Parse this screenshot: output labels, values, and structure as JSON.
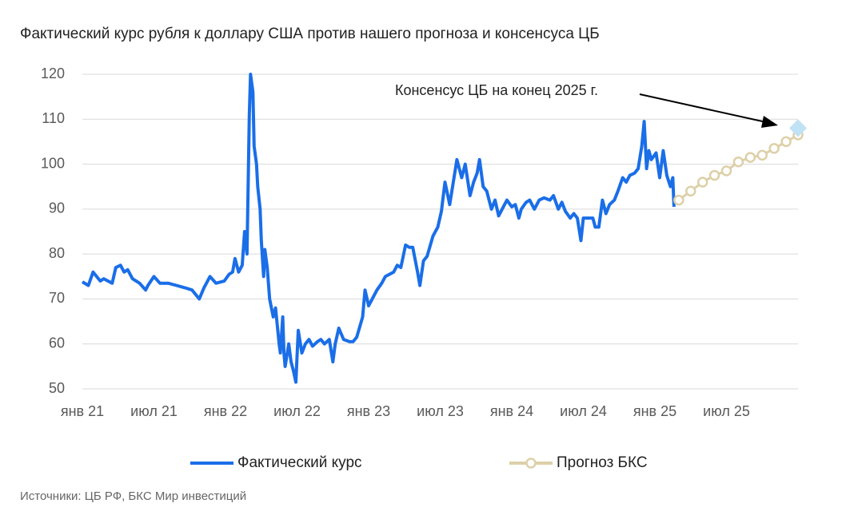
{
  "chart_data": {
    "type": "line",
    "title": "Фактический курс рубля к доллару США против нашего прогноза и консенсуса ЦБ",
    "xlim": [
      0,
      60
    ],
    "xticks": [
      {
        "value": 0,
        "label": "янв 21"
      },
      {
        "value": 6,
        "label": "июл 21"
      },
      {
        "value": 12,
        "label": "янв 22"
      },
      {
        "value": 18,
        "label": "июл 22"
      },
      {
        "value": 24,
        "label": "янв 23"
      },
      {
        "value": 30,
        "label": "июл 23"
      },
      {
        "value": 36,
        "label": "янв 24"
      },
      {
        "value": 42,
        "label": "июл 24"
      },
      {
        "value": 48,
        "label": "янв 25"
      },
      {
        "value": 54,
        "label": "июл 25"
      }
    ],
    "ylim": [
      50,
      120
    ],
    "yticks": [
      50,
      60,
      70,
      80,
      90,
      100,
      110,
      120
    ],
    "grid": true,
    "series": [
      {
        "name": "Фактический курс",
        "color": "#1a6ee8",
        "x": [
          0,
          0.5,
          0.9,
          1.5,
          1.8,
          2.5,
          2.8,
          3.2,
          3.5,
          3.8,
          4.2,
          4.8,
          5.3,
          5.5,
          6.0,
          6.5,
          7.2,
          7.9,
          8.6,
          9.2,
          9.8,
          10.2,
          10.7,
          11.2,
          11.9,
          12.3,
          12.6,
          12.8,
          13.1,
          13.4,
          13.6,
          13.8,
          14.0,
          14.1,
          14.3,
          14.4,
          14.6,
          14.7,
          14.9,
          15.0,
          15.2,
          15.3,
          15.5,
          15.7,
          16.0,
          16.2,
          16.5,
          16.6,
          16.8,
          16.9,
          17.0,
          17.3,
          17.5,
          17.7,
          17.9,
          18.1,
          18.4,
          18.7,
          19.0,
          19.3,
          19.7,
          20.0,
          20.3,
          20.7,
          21.0,
          21.2,
          21.5,
          21.9,
          22.4,
          22.7,
          23.0,
          23.5,
          23.7,
          24.0,
          24.4,
          24.7,
          25.1,
          25.4,
          26.1,
          26.4,
          26.7,
          27.1,
          27.4,
          27.7,
          28.1,
          28.3,
          28.6,
          28.9,
          29.4,
          29.8,
          30.1,
          30.4,
          30.8,
          31.1,
          31.4,
          31.8,
          32.1,
          32.5,
          32.8,
          33.1,
          33.3,
          33.6,
          33.9,
          34.3,
          34.6,
          34.9,
          35.4,
          35.6,
          36.0,
          36.3,
          36.6,
          36.8,
          37.2,
          37.5,
          37.9,
          38.3,
          38.7,
          39.2,
          39.5,
          39.9,
          40.2,
          40.5,
          40.9,
          41.2,
          41.5,
          41.8,
          42.0,
          42.4,
          42.8,
          43.0,
          43.3,
          43.6,
          43.9,
          44.2,
          44.6,
          44.9,
          45.3,
          45.6,
          45.9,
          46.3,
          46.6,
          46.9,
          47.1,
          47.3,
          47.5,
          47.7,
          48.1,
          48.4,
          48.7,
          49.0,
          49.3,
          49.5,
          49.6
        ],
        "values": [
          73.8,
          73,
          76,
          74,
          74.5,
          73.5,
          77,
          77.5,
          76,
          76.5,
          74.5,
          73.5,
          72,
          73,
          75,
          73.5,
          73.5,
          73,
          72.5,
          72,
          70,
          72.5,
          75,
          73.5,
          74,
          75.5,
          76,
          79,
          76,
          77.5,
          85,
          80,
          111,
          120,
          116,
          104,
          100,
          95,
          90,
          83,
          75,
          81,
          77,
          70,
          66,
          68,
          60,
          58,
          66,
          58,
          55,
          60,
          56,
          54,
          51.5,
          63,
          58,
          60,
          61,
          59.5,
          60.5,
          61,
          60,
          61,
          56,
          60,
          63.5,
          61,
          60.5,
          60.5,
          61.5,
          66,
          72,
          68.5,
          70.5,
          72,
          73.5,
          75,
          76,
          77.5,
          77,
          82,
          81.5,
          81.5,
          76,
          73,
          78.5,
          79.5,
          84,
          86,
          89.5,
          96,
          91,
          96,
          101,
          97,
          100,
          93,
          96,
          98,
          101,
          95,
          94,
          90,
          92,
          88.5,
          91,
          92,
          90.5,
          91,
          88,
          90,
          91.5,
          92,
          90,
          92,
          92.5,
          92,
          93,
          90,
          91.5,
          89.5,
          88,
          89,
          88,
          83,
          88,
          88,
          88,
          86,
          86,
          92,
          89,
          91,
          92,
          94,
          97,
          96,
          97.5,
          98,
          99,
          104,
          109.5,
          99,
          103,
          101,
          102.5,
          97,
          103,
          97.5,
          95,
          97,
          90.5
        ]
      },
      {
        "name": "Прогноз БКС",
        "color": "#ddd0a8",
        "marker": "circle",
        "x": [
          50,
          51,
          52,
          53,
          54,
          55,
          56,
          57,
          58,
          59,
          60
        ],
        "values": [
          92,
          94,
          96,
          97.5,
          98.5,
          100.5,
          101.5,
          102,
          103.5,
          105,
          106.5
        ]
      }
    ],
    "consensus": {
      "label": "Консенсус ЦБ на конец 2025 г.",
      "x": 60,
      "value": 108,
      "color": "#bfe2f4"
    },
    "source": "Источники: ЦБ РФ, БКС Мир инвестиций"
  }
}
